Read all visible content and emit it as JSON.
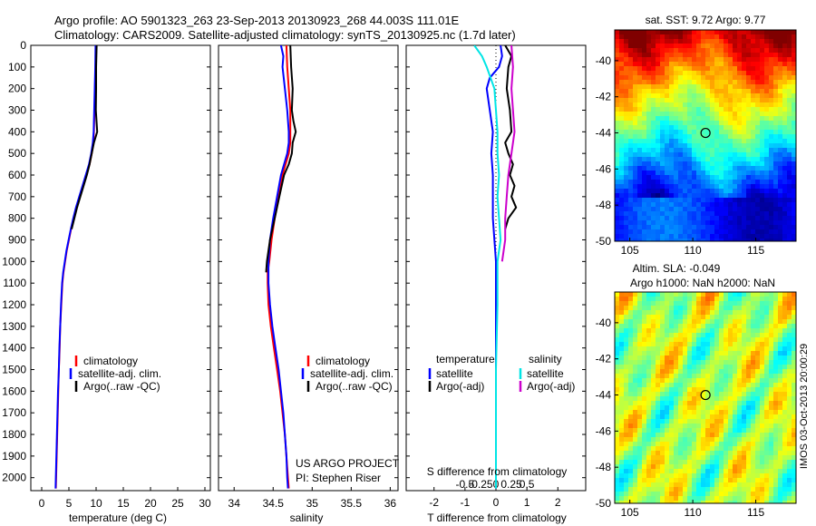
{
  "header": {
    "line1": "Argo profile: AO 5901323_263 23-Sep-2013 20130923_268 44.003S 111.01E",
    "line2": "Climatology: CARS2009. Satellite-adjusted climatology: synTS_20130925.nc (1.7d later)"
  },
  "colors": {
    "climatology": "#ff0000",
    "satellite": "#0000ff",
    "argo": "#000000",
    "salinity_satellite": "#00e5e5",
    "salinity_argo": "#cc00cc"
  },
  "chart_data": [
    {
      "type": "line",
      "id": "temperature",
      "xlabel": "temperature (deg C)",
      "xlim": [
        -2,
        31
      ],
      "ylim": [
        2060,
        0
      ],
      "xticks": [
        "0",
        "5",
        "10",
        "15",
        "20",
        "25",
        "30"
      ],
      "yticks": [
        "0",
        "100",
        "200",
        "300",
        "400",
        "500",
        "600",
        "700",
        "800",
        "900",
        "1000",
        "1100",
        "1200",
        "1300",
        "1400",
        "1500",
        "1600",
        "1700",
        "1800",
        "1900",
        "2000"
      ],
      "legend": [
        "climatology",
        "satellite-adj. clim.",
        "Argo(..raw -QC)"
      ],
      "series": [
        {
          "name": "climatology",
          "color": "#ff0000",
          "points": [
            [
              10.0,
              0
            ],
            [
              9.9,
              100
            ],
            [
              9.8,
              200
            ],
            [
              9.7,
              300
            ],
            [
              9.6,
              400
            ],
            [
              9.5,
              450
            ],
            [
              9.2,
              500
            ],
            [
              8.8,
              550
            ],
            [
              8.2,
              600
            ],
            [
              7.6,
              650
            ],
            [
              7.0,
              700
            ],
            [
              6.4,
              750
            ],
            [
              5.9,
              800
            ],
            [
              5.4,
              850
            ],
            [
              5.0,
              900
            ],
            [
              4.6,
              950
            ],
            [
              4.3,
              1000
            ],
            [
              4.0,
              1050
            ],
            [
              3.8,
              1100
            ],
            [
              3.6,
              1200
            ],
            [
              3.4,
              1300
            ],
            [
              3.3,
              1400
            ],
            [
              3.15,
              1500
            ],
            [
              3.05,
              1600
            ],
            [
              2.95,
              1700
            ],
            [
              2.85,
              1800
            ],
            [
              2.75,
              1900
            ],
            [
              2.65,
              2000
            ],
            [
              2.6,
              2050
            ]
          ]
        },
        {
          "name": "satellite-adj. clim.",
          "color": "#0000ff",
          "points": [
            [
              9.9,
              0
            ],
            [
              9.85,
              100
            ],
            [
              9.75,
              200
            ],
            [
              9.65,
              300
            ],
            [
              9.55,
              400
            ],
            [
              9.4,
              450
            ],
            [
              9.1,
              500
            ],
            [
              8.7,
              550
            ],
            [
              8.1,
              600
            ],
            [
              7.5,
              650
            ],
            [
              6.9,
              700
            ],
            [
              6.3,
              750
            ],
            [
              5.8,
              800
            ],
            [
              5.35,
              850
            ],
            [
              4.95,
              900
            ],
            [
              4.55,
              950
            ],
            [
              4.25,
              1000
            ],
            [
              3.95,
              1050
            ],
            [
              3.75,
              1100
            ],
            [
              3.55,
              1200
            ],
            [
              3.4,
              1300
            ],
            [
              3.25,
              1400
            ],
            [
              3.15,
              1500
            ],
            [
              3.0,
              1600
            ],
            [
              2.9,
              1700
            ],
            [
              2.8,
              1800
            ],
            [
              2.7,
              1900
            ],
            [
              2.6,
              2000
            ],
            [
              2.55,
              2050
            ]
          ]
        },
        {
          "name": "Argo(..raw -QC)",
          "color": "#000000",
          "points": [
            [
              10.1,
              0
            ],
            [
              10.0,
              100
            ],
            [
              10.0,
              200
            ],
            [
              9.95,
              300
            ],
            [
              10.2,
              400
            ],
            [
              9.6,
              450
            ],
            [
              9.2,
              500
            ],
            [
              8.8,
              550
            ],
            [
              8.3,
              600
            ],
            [
              7.7,
              650
            ],
            [
              7.1,
              700
            ],
            [
              6.5,
              750
            ],
            [
              6.0,
              800
            ],
            [
              5.5,
              850
            ]
          ]
        }
      ]
    },
    {
      "type": "line",
      "id": "salinity",
      "xlabel": "salinity",
      "xlim": [
        33.8,
        36.1
      ],
      "ylim": [
        2060,
        0
      ],
      "xticks": [
        "34",
        "34.5",
        "35",
        "35.5",
        "36"
      ],
      "legend": [
        "climatology",
        "satellite-adj. clim.",
        "Argo(..raw -QC)"
      ],
      "series": [
        {
          "name": "climatology",
          "color": "#ff0000",
          "points": [
            [
              34.67,
              0
            ],
            [
              34.68,
              100
            ],
            [
              34.7,
              200
            ],
            [
              34.72,
              300
            ],
            [
              34.72,
              400
            ],
            [
              34.72,
              450
            ],
            [
              34.7,
              500
            ],
            [
              34.66,
              550
            ],
            [
              34.62,
              600
            ],
            [
              34.57,
              700
            ],
            [
              34.52,
              800
            ],
            [
              34.48,
              900
            ],
            [
              34.45,
              1000
            ],
            [
              34.43,
              1050
            ],
            [
              34.43,
              1100
            ],
            [
              34.44,
              1200
            ],
            [
              34.47,
              1300
            ],
            [
              34.51,
              1400
            ],
            [
              34.55,
              1500
            ],
            [
              34.59,
              1600
            ],
            [
              34.62,
              1700
            ],
            [
              34.65,
              1800
            ],
            [
              34.67,
              1900
            ],
            [
              34.69,
              2000
            ],
            [
              34.7,
              2050
            ]
          ]
        },
        {
          "name": "satellite-adj. clim.",
          "color": "#0000ff",
          "points": [
            [
              34.6,
              0
            ],
            [
              34.63,
              50
            ],
            [
              34.62,
              100
            ],
            [
              34.65,
              200
            ],
            [
              34.68,
              300
            ],
            [
              34.7,
              400
            ],
            [
              34.7,
              450
            ],
            [
              34.68,
              500
            ],
            [
              34.64,
              550
            ],
            [
              34.6,
              600
            ],
            [
              34.55,
              700
            ],
            [
              34.5,
              800
            ],
            [
              34.46,
              900
            ],
            [
              34.44,
              1000
            ],
            [
              34.44,
              1100
            ],
            [
              34.46,
              1200
            ],
            [
              34.49,
              1300
            ],
            [
              34.53,
              1400
            ],
            [
              34.57,
              1500
            ],
            [
              34.6,
              1600
            ],
            [
              34.63,
              1700
            ],
            [
              34.65,
              1800
            ],
            [
              34.67,
              1900
            ],
            [
              34.68,
              2000
            ],
            [
              34.69,
              2050
            ]
          ]
        },
        {
          "name": "Argo(..raw -QC)",
          "color": "#000000",
          "points": [
            [
              34.72,
              0
            ],
            [
              34.73,
              100
            ],
            [
              34.75,
              200
            ],
            [
              34.74,
              300
            ],
            [
              34.76,
              350
            ],
            [
              34.79,
              400
            ],
            [
              34.75,
              450
            ],
            [
              34.74,
              500
            ],
            [
              34.7,
              550
            ],
            [
              34.64,
              600
            ],
            [
              34.58,
              700
            ],
            [
              34.52,
              800
            ],
            [
              34.46,
              900
            ],
            [
              34.42,
              1000
            ],
            [
              34.41,
              1050
            ]
          ]
        }
      ]
    },
    {
      "type": "line",
      "id": "difference",
      "xlabel": "T difference from climatology",
      "xlabel_top": "S difference from climatology",
      "xlim": [
        -2.9,
        2.9
      ],
      "ylim": [
        2060,
        0
      ],
      "xticks": [
        "-2",
        "-1",
        "0",
        "1",
        "2"
      ],
      "xticks_top": [
        "-0.5",
        "-0.25",
        "0",
        "0.25",
        "0.5"
      ],
      "legend_headers": [
        "temperature",
        "salinity"
      ],
      "legend": [
        "satellite",
        "Argo(-adj)",
        "satellite",
        "Argo(-adj)"
      ],
      "series": [
        {
          "name": "satellite",
          "color": "#0000ff",
          "points": [
            [
              0.15,
              0
            ],
            [
              0.2,
              50
            ],
            [
              0.1,
              100
            ],
            [
              -0.2,
              150
            ],
            [
              -0.3,
              200
            ],
            [
              -0.2,
              300
            ],
            [
              -0.1,
              400
            ],
            [
              -0.15,
              500
            ],
            [
              -0.1,
              600
            ],
            [
              -0.1,
              700
            ],
            [
              -0.1,
              800
            ],
            [
              -0.05,
              900
            ],
            [
              0.0,
              1000
            ],
            [
              0.0,
              1200
            ],
            [
              0.0,
              1500
            ],
            [
              0.0,
              2050
            ]
          ]
        },
        {
          "name": "Argo(-adj)",
          "color": "#000000",
          "points": [
            [
              0.3,
              0
            ],
            [
              0.5,
              50
            ],
            [
              0.4,
              100
            ],
            [
              0.35,
              200
            ],
            [
              0.45,
              300
            ],
            [
              0.5,
              400
            ],
            [
              0.3,
              450
            ],
            [
              0.4,
              500
            ],
            [
              0.55,
              550
            ],
            [
              0.45,
              600
            ],
            [
              0.6,
              650
            ],
            [
              0.5,
              700
            ],
            [
              0.65,
              750
            ],
            [
              0.4,
              800
            ],
            [
              0.3,
              850
            ]
          ]
        },
        {
          "name": "satellite",
          "color": "#00e5e5",
          "points": [
            [
              -0.7,
              0
            ],
            [
              -0.45,
              50
            ],
            [
              -0.3,
              100
            ],
            [
              -0.05,
              200
            ],
            [
              0.0,
              300
            ],
            [
              0.05,
              400
            ],
            [
              0.05,
              500
            ],
            [
              0.1,
              600
            ],
            [
              0.05,
              700
            ],
            [
              0.1,
              800
            ],
            [
              0.15,
              900
            ],
            [
              0.05,
              1000
            ],
            [
              0.05,
              1200
            ],
            [
              0.0,
              1500
            ],
            [
              0.0,
              1800
            ],
            [
              0.0,
              2050
            ]
          ]
        },
        {
          "name": "Argo(-adj)",
          "color": "#cc00cc",
          "points": [
            [
              0.5,
              0
            ],
            [
              0.55,
              100
            ],
            [
              0.5,
              200
            ],
            [
              0.55,
              300
            ],
            [
              0.6,
              400
            ],
            [
              0.5,
              500
            ],
            [
              0.4,
              600
            ],
            [
              0.35,
              700
            ],
            [
              0.3,
              800
            ],
            [
              0.3,
              900
            ],
            [
              0.2,
              1000
            ]
          ]
        }
      ]
    },
    {
      "type": "heatmap",
      "id": "sst-map",
      "title": "sat. SST: 9.72 Argo: 9.77",
      "xticks": [
        "105",
        "110",
        "115"
      ],
      "yticks": [
        "-40",
        "-42",
        "-44",
        "-46",
        "-48",
        "-50"
      ],
      "xlim": [
        103.8,
        118.2
      ],
      "ylim": [
        -50,
        -38.3
      ],
      "argo_position": [
        111.01,
        -44.003
      ]
    },
    {
      "type": "heatmap",
      "id": "sla-map",
      "title_line1": "Altim. SLA: -0.049",
      "title_line2": "Argo h1000: NaN h2000: NaN",
      "xticks": [
        "105",
        "110",
        "115"
      ],
      "yticks": [
        "-40",
        "-42",
        "-44",
        "-46",
        "-48",
        "-50"
      ],
      "xlim": [
        103.8,
        118.2
      ],
      "ylim": [
        -50,
        -38.3
      ],
      "argo_position": [
        111.01,
        -44.003
      ]
    }
  ],
  "annotations": {
    "project": "US ARGO PROJECT",
    "pi": "PI: Stephen Riser",
    "timestamp": "IMOS 03-Oct-2013 20:00:29"
  }
}
